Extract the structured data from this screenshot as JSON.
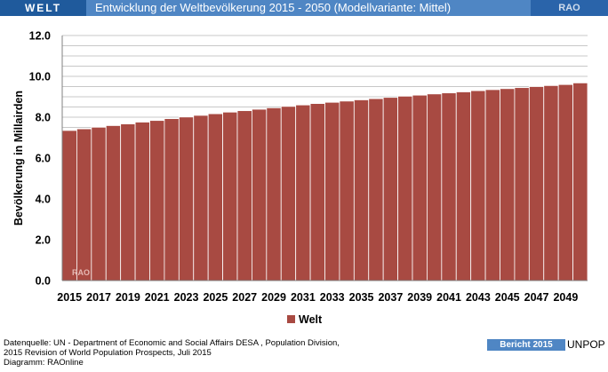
{
  "header": {
    "region": "WELT",
    "title": "Entwicklung der Weltbevölkerung  2015 - 2050 (Modellvariante: Mittel)",
    "brand": "RAO"
  },
  "chart_data": {
    "type": "bar",
    "ylabel": "Bevölkerung in Millairden",
    "ylim": [
      0,
      12
    ],
    "yticks": [
      "0.0",
      "2.0",
      "4.0",
      "6.0",
      "8.0",
      "10.0",
      "12.0"
    ],
    "categories": [
      "2015",
      "2016",
      "2017",
      "2018",
      "2019",
      "2020",
      "2021",
      "2022",
      "2023",
      "2024",
      "2025",
      "2026",
      "2027",
      "2028",
      "2029",
      "2030",
      "2031",
      "2032",
      "2033",
      "2034",
      "2035",
      "2036",
      "2037",
      "2038",
      "2039",
      "2040",
      "2041",
      "2042",
      "2043",
      "2044",
      "2045",
      "2046",
      "2047",
      "2048",
      "2049",
      "2050"
    ],
    "xtick_labels": [
      "2015",
      "2017",
      "2019",
      "2021",
      "2023",
      "2025",
      "2027",
      "2029",
      "2031",
      "2033",
      "2035",
      "2037",
      "2039",
      "2041",
      "2043",
      "2045",
      "2047",
      "2049"
    ],
    "series": [
      {
        "name": "Welt",
        "color": "#a84a42",
        "values": [
          7.35,
          7.43,
          7.51,
          7.59,
          7.67,
          7.76,
          7.84,
          7.93,
          8.01,
          8.09,
          8.17,
          8.25,
          8.32,
          8.39,
          8.46,
          8.53,
          8.6,
          8.67,
          8.73,
          8.79,
          8.85,
          8.91,
          8.97,
          9.03,
          9.08,
          9.14,
          9.19,
          9.24,
          9.3,
          9.35,
          9.4,
          9.45,
          9.5,
          9.55,
          9.6,
          9.68
        ]
      }
    ],
    "watermark": "RAO",
    "grid": true,
    "legend_position": "bottom"
  },
  "footer": {
    "source_line1": "Datenquelle: UN -  Department of Economic and Social Affairs DESA , Population Division,",
    "source_line2": "2015 Revision of World Population Prospects, Juli 2015",
    "source_line3": "Diagramm: RAOnline",
    "badge": "Bericht 2015",
    "brand": "UNPOP"
  }
}
